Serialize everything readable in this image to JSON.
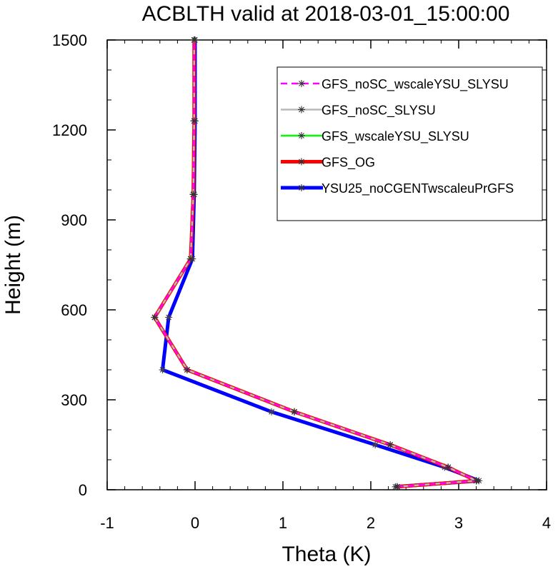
{
  "chart_data": {
    "type": "line",
    "title": "ACBLTH valid at 2018-03-01_15:00:00",
    "xlabel": "Theta (K)",
    "ylabel": "Height (m)",
    "xlim": [
      -1,
      4
    ],
    "ylim": [
      0,
      1500
    ],
    "xticks": [
      -1,
      0,
      1,
      2,
      3,
      4
    ],
    "xtick_labels": [
      "-1",
      "0",
      "1",
      "2",
      "3",
      "4"
    ],
    "yticks": [
      0,
      300,
      600,
      900,
      1200,
      1500
    ],
    "ytick_labels": [
      "0",
      "300",
      "600",
      "900",
      "1200",
      "1500"
    ],
    "grid": false,
    "legend_position": "top-right",
    "series": [
      {
        "name": "GFS_noSC_wscaleYSU_SLYSU",
        "color": "#ff00ff",
        "dash": "dashed",
        "marker": "asterisk",
        "x": [
          2.3,
          3.2,
          2.88,
          2.22,
          1.13,
          -0.09,
          -0.46,
          -0.05,
          -0.02,
          -0.01,
          -0.01
        ],
        "y": [
          10,
          30,
          75,
          150,
          260,
          400,
          575,
          770,
          985,
          1230,
          1500
        ]
      },
      {
        "name": "GFS_noSC_SLYSU",
        "color": "#b8b8b8",
        "dash": "solid",
        "marker": "asterisk",
        "x": [
          2.3,
          3.2,
          2.88,
          2.22,
          1.13,
          -0.09,
          -0.46,
          -0.05,
          -0.02,
          -0.01,
          -0.01
        ],
        "y": [
          10,
          30,
          75,
          150,
          260,
          400,
          575,
          770,
          985,
          1230,
          1500
        ]
      },
      {
        "name": "GFS_wscaleYSU_SLYSU",
        "color": "#00ff00",
        "dash": "solid",
        "marker": "asterisk",
        "x": [
          2.3,
          3.2,
          2.88,
          2.22,
          1.13,
          -0.09,
          -0.46,
          -0.05,
          -0.02,
          -0.01,
          -0.01
        ],
        "y": [
          10,
          30,
          75,
          150,
          260,
          400,
          575,
          770,
          985,
          1230,
          1500
        ]
      },
      {
        "name": "GFS_OG",
        "color": "#ff0000",
        "dash": "solid",
        "marker": "asterisk",
        "x": [
          2.3,
          3.2,
          2.88,
          2.22,
          1.13,
          -0.09,
          -0.46,
          -0.05,
          -0.02,
          -0.01,
          -0.01
        ],
        "y": [
          10,
          30,
          75,
          150,
          260,
          400,
          575,
          770,
          985,
          1230,
          1500
        ]
      },
      {
        "name": "YSU25_noCGENTwscaleuPrGFS",
        "color": "#0000ff",
        "dash": "solid",
        "marker": "asterisk",
        "x": [
          2.28,
          3.23,
          2.84,
          2.05,
          0.87,
          -0.37,
          -0.3,
          -0.03,
          -0.01,
          0.0,
          0.0
        ],
        "y": [
          10,
          30,
          75,
          150,
          260,
          400,
          575,
          770,
          985,
          1230,
          1500
        ]
      }
    ]
  }
}
